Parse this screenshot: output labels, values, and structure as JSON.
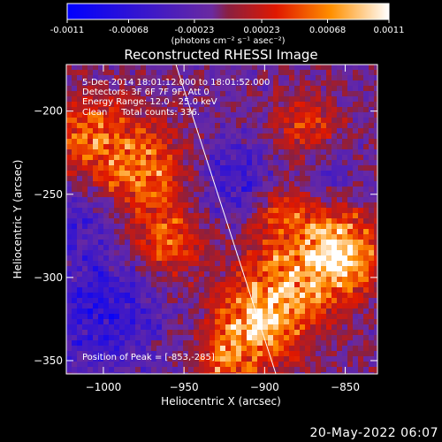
{
  "chart_data": {
    "type": "heatmap",
    "title": "Reconstructed RHESSI Image",
    "xlabel": "Heliocentric X (arcsec)",
    "ylabel": "Heliocentric Y (arcsec)",
    "xlim": [
      -1023,
      -830
    ],
    "ylim": [
      -358,
      -172
    ],
    "x_ticks": [
      -1000,
      -950,
      -900,
      -850
    ],
    "y_ticks": [
      -350,
      -300,
      -250,
      -200
    ],
    "colorbar": {
      "range": [
        -0.0011,
        0.0011
      ],
      "tick_values": [
        -0.0011,
        -0.00068,
        -0.00023,
        0.00023,
        0.00068,
        0.0011
      ],
      "tick_labels": [
        "-0.0011",
        "-0.00068",
        "-0.00023",
        "0.00023",
        "0.00068",
        "0.0011"
      ],
      "units": "(photons cm⁻² s⁻¹ asec⁻²)"
    },
    "annotations": [
      "5-Dec-2014 18:01:12.000 to 18:01:52.000",
      "Detectors: 3F 6F 7F 9F, Att 0",
      "Energy Range: 12.0 - 25.0 keV",
      "Clean     Total counts: 336.",
      "Position of Peak = [-853,-285]"
    ],
    "peak": [
      -853,
      -285
    ],
    "limb_line": [
      [
        -955,
        -172
      ],
      [
        -893,
        -358
      ]
    ],
    "hot_regions": [
      {
        "x": -905,
        "y": -328,
        "r": 18,
        "value": 0.00095
      },
      {
        "x": -853,
        "y": -285,
        "r": 16,
        "value": 0.0011
      },
      {
        "x": -880,
        "y": -300,
        "r": 22,
        "value": 0.0007
      },
      {
        "x": -975,
        "y": -235,
        "r": 20,
        "value": 0.00075
      },
      {
        "x": -1010,
        "y": -215,
        "r": 18,
        "value": 0.0006
      },
      {
        "x": -960,
        "y": -280,
        "r": 15,
        "value": 0.00065
      },
      {
        "x": -890,
        "y": -260,
        "r": 14,
        "value": 0.0005
      },
      {
        "x": -875,
        "y": -210,
        "r": 16,
        "value": 0.0005
      },
      {
        "x": -925,
        "y": -350,
        "r": 12,
        "value": 0.0006
      }
    ],
    "cold_regions": [
      {
        "x": -1000,
        "y": -320,
        "r": 25,
        "value": -0.0006
      },
      {
        "x": -915,
        "y": -240,
        "r": 18,
        "value": -0.0005
      },
      {
        "x": -1015,
        "y": -265,
        "r": 15,
        "value": -0.0004
      },
      {
        "x": -860,
        "y": -235,
        "r": 12,
        "value": -0.0003
      }
    ]
  },
  "footer_date": "20-May-2022 06:07"
}
